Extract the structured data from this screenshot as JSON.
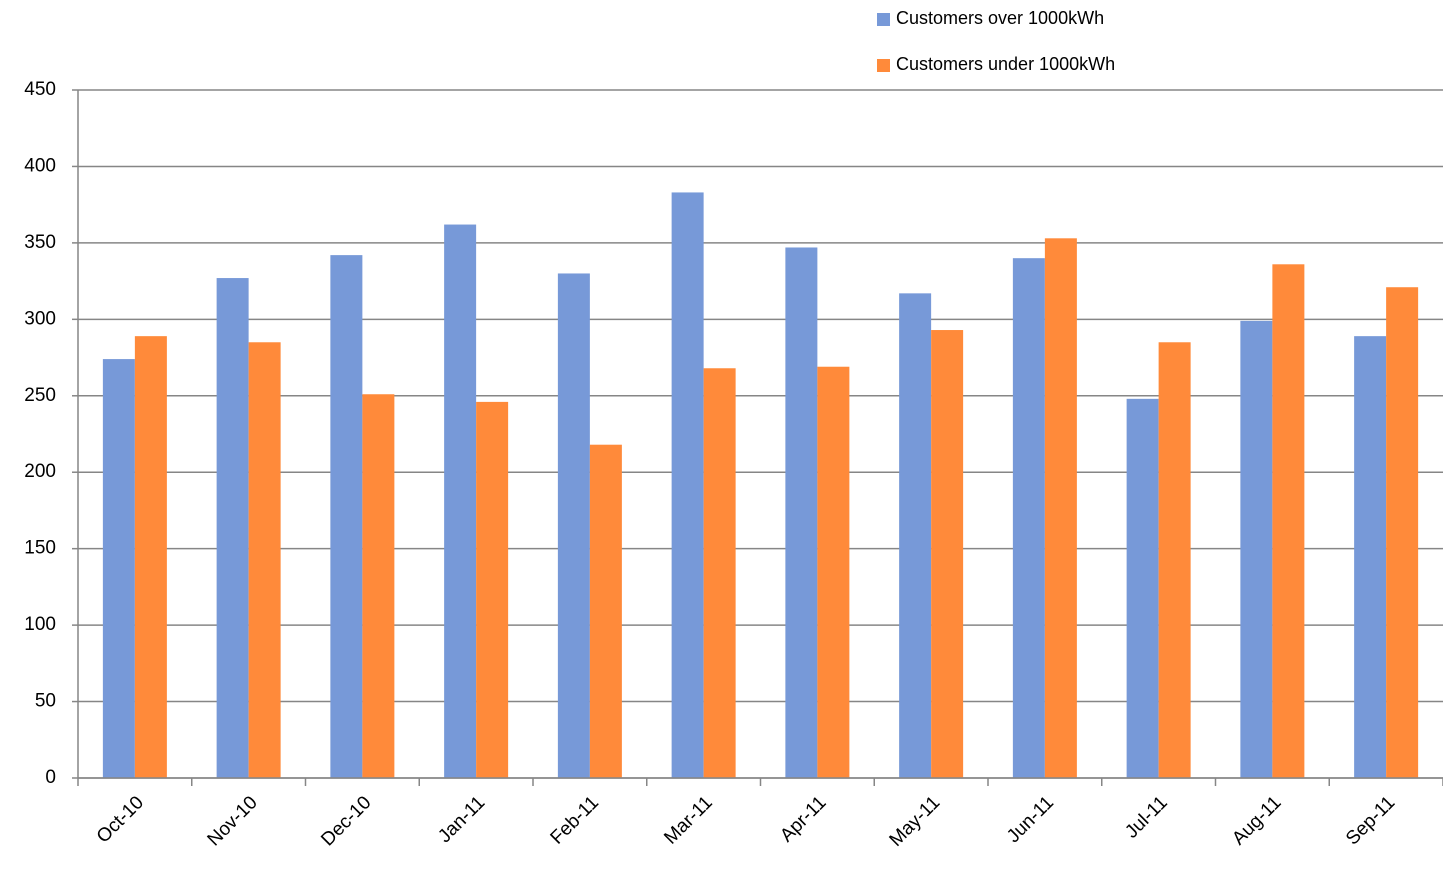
{
  "chart_data": {
    "type": "bar",
    "categories": [
      "Oct-10",
      "Nov-10",
      "Dec-10",
      "Jan-11",
      "Feb-11",
      "Mar-11",
      "Apr-11",
      "May-11",
      "Jun-11",
      "Jul-11",
      "Aug-11",
      "Sep-11"
    ],
    "series": [
      {
        "name": "Customers over 1000kWh",
        "color": "#7799d8",
        "values": [
          274,
          327,
          342,
          362,
          330,
          383,
          347,
          317,
          340,
          248,
          299,
          289
        ]
      },
      {
        "name": "Customers under 1000kWh",
        "color": "#ff8a3a",
        "values": [
          289,
          285,
          251,
          246,
          218,
          268,
          269,
          293,
          353,
          285,
          336,
          321
        ]
      }
    ],
    "ylim": [
      0,
      450
    ],
    "yticks": [
      0,
      50,
      100,
      150,
      200,
      250,
      300,
      350,
      400,
      450
    ],
    "grid": true,
    "legend": "top"
  }
}
